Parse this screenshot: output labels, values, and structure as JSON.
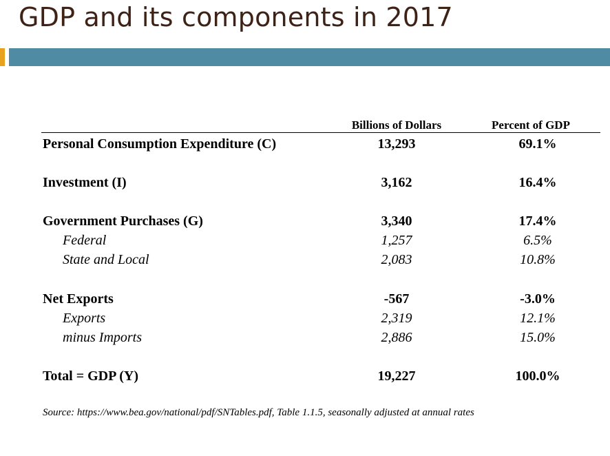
{
  "title": "GDP and its components in 2017",
  "colors": {
    "accent": "#e8a21e",
    "band": "#4f8ba2",
    "title_text": "#3e2216"
  },
  "table": {
    "headers": [
      "Billions of Dollars",
      "Percent of GDP"
    ],
    "rows": [
      {
        "label": "Personal Consumption Expenditure (C)",
        "dollars": "13,293",
        "percent": "69.1%",
        "style": "main"
      },
      {
        "label": "Investment (I)",
        "dollars": "3,162",
        "percent": "16.4%",
        "style": "main"
      },
      {
        "label": "Government Purchases (G)",
        "dollars": "3,340",
        "percent": "17.4%",
        "style": "main"
      },
      {
        "label": "Federal",
        "dollars": "1,257",
        "percent": "6.5%",
        "style": "sub"
      },
      {
        "label": "State and Local",
        "dollars": "2,083",
        "percent": "10.8%",
        "style": "sub"
      },
      {
        "label": "Net Exports",
        "dollars": "-567",
        "percent": "-3.0%",
        "style": "main"
      },
      {
        "label": "Exports",
        "dollars": "2,319",
        "percent": "12.1%",
        "style": "sub"
      },
      {
        "label": "minus Imports",
        "dollars": "2,886",
        "percent": "15.0%",
        "style": "sub"
      },
      {
        "label": "Total = GDP (Y)",
        "dollars": "19,227",
        "percent": "100.0%",
        "style": "main"
      }
    ]
  },
  "source": "Source: https://www.bea.gov/national/pdf/SNTables.pdf, Table 1.1.5, seasonally adjusted at annual rates"
}
